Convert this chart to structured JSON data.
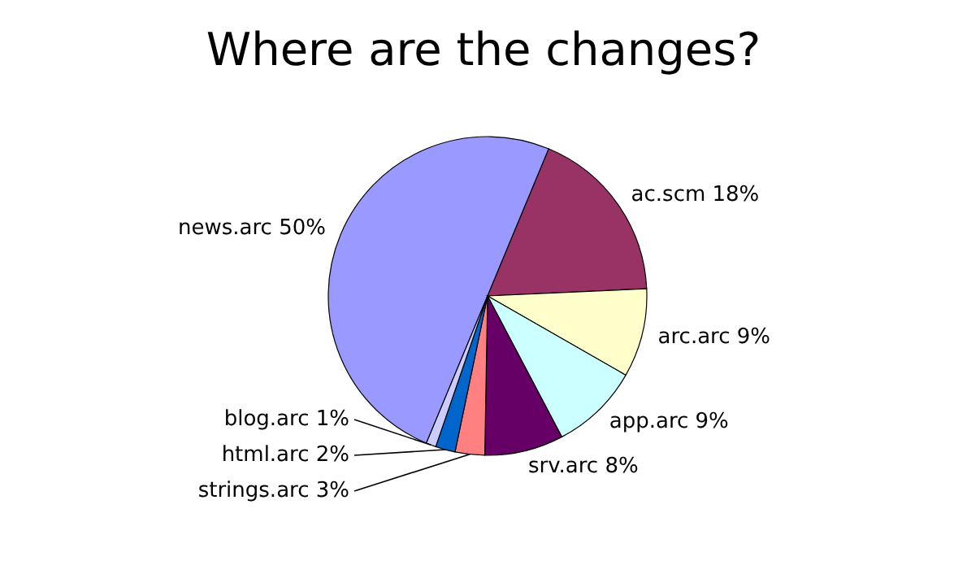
{
  "chart_data": {
    "type": "pie",
    "title": "Where are the changes?",
    "categories": [
      "news.arc",
      "ac.scm",
      "arc.arc",
      "app.arc",
      "srv.arc",
      "strings.arc",
      "html.arc",
      "blog.arc"
    ],
    "values": [
      50,
      18,
      9,
      9,
      8,
      3,
      2,
      1
    ],
    "value_labels": [
      "50%",
      "18%",
      "9%",
      "9%",
      "8%",
      "3%",
      "2%",
      "1%"
    ],
    "colors": [
      "#9999ff",
      "#993366",
      "#ffffcc",
      "#ccffff",
      "#660066",
      "#ff8080",
      "#0066cc",
      "#ccccff"
    ]
  }
}
